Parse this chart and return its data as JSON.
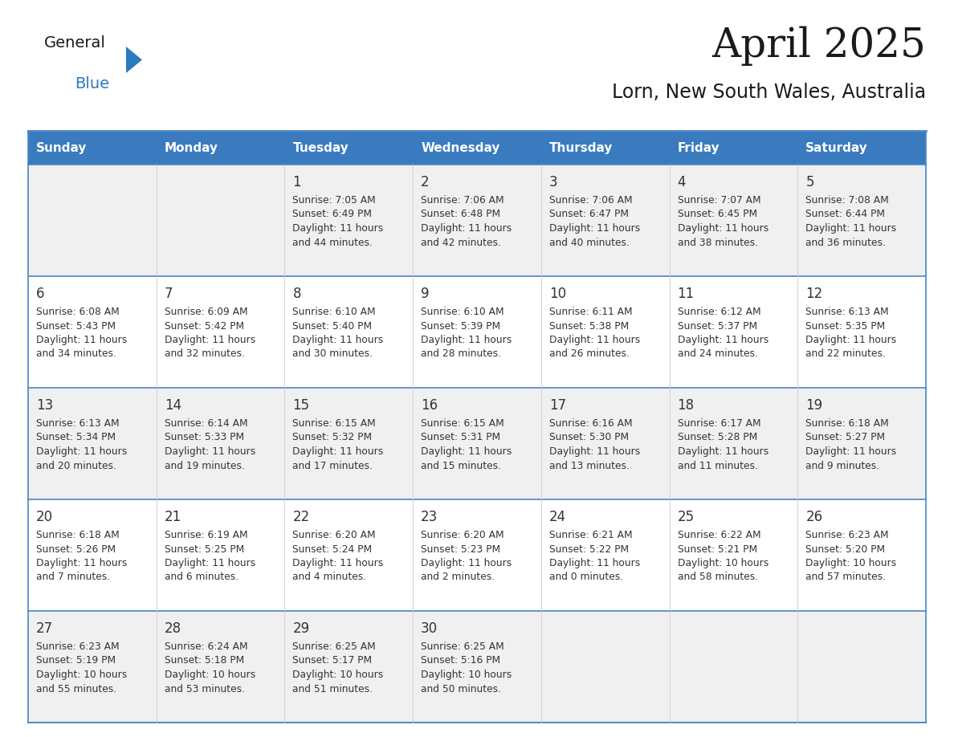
{
  "title": "April 2025",
  "subtitle": "Lorn, New South Wales, Australia",
  "days_of_week": [
    "Sunday",
    "Monday",
    "Tuesday",
    "Wednesday",
    "Thursday",
    "Friday",
    "Saturday"
  ],
  "header_bg": "#3a7bbf",
  "header_text": "#ffffff",
  "cell_bg_light": "#f0f0f0",
  "cell_bg_white": "#ffffff",
  "border_color": "#4a86c8",
  "sep_color": "#4a86c8",
  "text_color": "#333333",
  "calendar_data": [
    [
      {
        "day": "",
        "sunrise": "",
        "sunset": "",
        "daylight": ""
      },
      {
        "day": "",
        "sunrise": "",
        "sunset": "",
        "daylight": ""
      },
      {
        "day": "1",
        "sunrise": "Sunrise: 7:05 AM",
        "sunset": "Sunset: 6:49 PM",
        "daylight": "Daylight: 11 hours\nand 44 minutes."
      },
      {
        "day": "2",
        "sunrise": "Sunrise: 7:06 AM",
        "sunset": "Sunset: 6:48 PM",
        "daylight": "Daylight: 11 hours\nand 42 minutes."
      },
      {
        "day": "3",
        "sunrise": "Sunrise: 7:06 AM",
        "sunset": "Sunset: 6:47 PM",
        "daylight": "Daylight: 11 hours\nand 40 minutes."
      },
      {
        "day": "4",
        "sunrise": "Sunrise: 7:07 AM",
        "sunset": "Sunset: 6:45 PM",
        "daylight": "Daylight: 11 hours\nand 38 minutes."
      },
      {
        "day": "5",
        "sunrise": "Sunrise: 7:08 AM",
        "sunset": "Sunset: 6:44 PM",
        "daylight": "Daylight: 11 hours\nand 36 minutes."
      }
    ],
    [
      {
        "day": "6",
        "sunrise": "Sunrise: 6:08 AM",
        "sunset": "Sunset: 5:43 PM",
        "daylight": "Daylight: 11 hours\nand 34 minutes."
      },
      {
        "day": "7",
        "sunrise": "Sunrise: 6:09 AM",
        "sunset": "Sunset: 5:42 PM",
        "daylight": "Daylight: 11 hours\nand 32 minutes."
      },
      {
        "day": "8",
        "sunrise": "Sunrise: 6:10 AM",
        "sunset": "Sunset: 5:40 PM",
        "daylight": "Daylight: 11 hours\nand 30 minutes."
      },
      {
        "day": "9",
        "sunrise": "Sunrise: 6:10 AM",
        "sunset": "Sunset: 5:39 PM",
        "daylight": "Daylight: 11 hours\nand 28 minutes."
      },
      {
        "day": "10",
        "sunrise": "Sunrise: 6:11 AM",
        "sunset": "Sunset: 5:38 PM",
        "daylight": "Daylight: 11 hours\nand 26 minutes."
      },
      {
        "day": "11",
        "sunrise": "Sunrise: 6:12 AM",
        "sunset": "Sunset: 5:37 PM",
        "daylight": "Daylight: 11 hours\nand 24 minutes."
      },
      {
        "day": "12",
        "sunrise": "Sunrise: 6:13 AM",
        "sunset": "Sunset: 5:35 PM",
        "daylight": "Daylight: 11 hours\nand 22 minutes."
      }
    ],
    [
      {
        "day": "13",
        "sunrise": "Sunrise: 6:13 AM",
        "sunset": "Sunset: 5:34 PM",
        "daylight": "Daylight: 11 hours\nand 20 minutes."
      },
      {
        "day": "14",
        "sunrise": "Sunrise: 6:14 AM",
        "sunset": "Sunset: 5:33 PM",
        "daylight": "Daylight: 11 hours\nand 19 minutes."
      },
      {
        "day": "15",
        "sunrise": "Sunrise: 6:15 AM",
        "sunset": "Sunset: 5:32 PM",
        "daylight": "Daylight: 11 hours\nand 17 minutes."
      },
      {
        "day": "16",
        "sunrise": "Sunrise: 6:15 AM",
        "sunset": "Sunset: 5:31 PM",
        "daylight": "Daylight: 11 hours\nand 15 minutes."
      },
      {
        "day": "17",
        "sunrise": "Sunrise: 6:16 AM",
        "sunset": "Sunset: 5:30 PM",
        "daylight": "Daylight: 11 hours\nand 13 minutes."
      },
      {
        "day": "18",
        "sunrise": "Sunrise: 6:17 AM",
        "sunset": "Sunset: 5:28 PM",
        "daylight": "Daylight: 11 hours\nand 11 minutes."
      },
      {
        "day": "19",
        "sunrise": "Sunrise: 6:18 AM",
        "sunset": "Sunset: 5:27 PM",
        "daylight": "Daylight: 11 hours\nand 9 minutes."
      }
    ],
    [
      {
        "day": "20",
        "sunrise": "Sunrise: 6:18 AM",
        "sunset": "Sunset: 5:26 PM",
        "daylight": "Daylight: 11 hours\nand 7 minutes."
      },
      {
        "day": "21",
        "sunrise": "Sunrise: 6:19 AM",
        "sunset": "Sunset: 5:25 PM",
        "daylight": "Daylight: 11 hours\nand 6 minutes."
      },
      {
        "day": "22",
        "sunrise": "Sunrise: 6:20 AM",
        "sunset": "Sunset: 5:24 PM",
        "daylight": "Daylight: 11 hours\nand 4 minutes."
      },
      {
        "day": "23",
        "sunrise": "Sunrise: 6:20 AM",
        "sunset": "Sunset: 5:23 PM",
        "daylight": "Daylight: 11 hours\nand 2 minutes."
      },
      {
        "day": "24",
        "sunrise": "Sunrise: 6:21 AM",
        "sunset": "Sunset: 5:22 PM",
        "daylight": "Daylight: 11 hours\nand 0 minutes."
      },
      {
        "day": "25",
        "sunrise": "Sunrise: 6:22 AM",
        "sunset": "Sunset: 5:21 PM",
        "daylight": "Daylight: 10 hours\nand 58 minutes."
      },
      {
        "day": "26",
        "sunrise": "Sunrise: 6:23 AM",
        "sunset": "Sunset: 5:20 PM",
        "daylight": "Daylight: 10 hours\nand 57 minutes."
      }
    ],
    [
      {
        "day": "27",
        "sunrise": "Sunrise: 6:23 AM",
        "sunset": "Sunset: 5:19 PM",
        "daylight": "Daylight: 10 hours\nand 55 minutes."
      },
      {
        "day": "28",
        "sunrise": "Sunrise: 6:24 AM",
        "sunset": "Sunset: 5:18 PM",
        "daylight": "Daylight: 10 hours\nand 53 minutes."
      },
      {
        "day": "29",
        "sunrise": "Sunrise: 6:25 AM",
        "sunset": "Sunset: 5:17 PM",
        "daylight": "Daylight: 10 hours\nand 51 minutes."
      },
      {
        "day": "30",
        "sunrise": "Sunrise: 6:25 AM",
        "sunset": "Sunset: 5:16 PM",
        "daylight": "Daylight: 10 hours\nand 50 minutes."
      },
      {
        "day": "",
        "sunrise": "",
        "sunset": "",
        "daylight": ""
      },
      {
        "day": "",
        "sunrise": "",
        "sunset": "",
        "daylight": ""
      },
      {
        "day": "",
        "sunrise": "",
        "sunset": "",
        "daylight": ""
      }
    ]
  ],
  "logo_text_general": "General",
  "logo_text_blue": "Blue",
  "logo_color_general": "#1a1a1a",
  "logo_color_blue": "#2a7bbf"
}
